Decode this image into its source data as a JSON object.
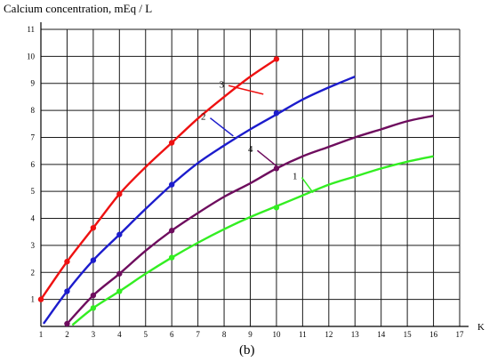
{
  "chart_data": {
    "type": "line",
    "ylabel": "Calcium concentration, mEq / L",
    "xlabel": "K",
    "caption": "(b)",
    "xlim": [
      1,
      17
    ],
    "ylim": [
      0,
      11
    ],
    "x_ticks": [
      1,
      2,
      3,
      4,
      5,
      6,
      7,
      8,
      9,
      10,
      11,
      12,
      13,
      14,
      15,
      16,
      17
    ],
    "y_ticks": [
      1,
      2,
      3,
      4,
      5,
      6,
      7,
      8,
      9,
      10,
      11
    ],
    "grid": true,
    "legend": "none",
    "series": [
      {
        "name": "1",
        "color": "#33ee22",
        "curve": [
          [
            2.2,
            0.05
          ],
          [
            3,
            0.68
          ],
          [
            4,
            1.3
          ],
          [
            5,
            1.95
          ],
          [
            6,
            2.55
          ],
          [
            7,
            3.1
          ],
          [
            8,
            3.6
          ],
          [
            9,
            4.05
          ],
          [
            10,
            4.45
          ],
          [
            11,
            4.85
          ],
          [
            12,
            5.25
          ],
          [
            13,
            5.55
          ],
          [
            14,
            5.85
          ],
          [
            15,
            6.1
          ],
          [
            16,
            6.3
          ]
        ],
        "markers": [
          [
            3,
            0.68
          ],
          [
            4,
            1.3
          ],
          [
            6,
            2.55
          ],
          [
            10,
            4.4
          ]
        ]
      },
      {
        "name": "2",
        "color": "#1c1ccc",
        "curve": [
          [
            1.1,
            0.1
          ],
          [
            2,
            1.3
          ],
          [
            3,
            2.45
          ],
          [
            4,
            3.4
          ],
          [
            5,
            4.35
          ],
          [
            6,
            5.25
          ],
          [
            7,
            6.05
          ],
          [
            8,
            6.7
          ],
          [
            9,
            7.3
          ],
          [
            10,
            7.85
          ],
          [
            11,
            8.4
          ],
          [
            12,
            8.85
          ],
          [
            13,
            9.25
          ]
        ],
        "markers": [
          [
            2,
            1.3
          ],
          [
            3,
            2.45
          ],
          [
            4,
            3.4
          ],
          [
            6,
            5.25
          ],
          [
            10,
            7.9
          ]
        ]
      },
      {
        "name": "3",
        "color": "#ee1111",
        "curve": [
          [
            1,
            1.0
          ],
          [
            2,
            2.4
          ],
          [
            3,
            3.65
          ],
          [
            4,
            4.9
          ],
          [
            5,
            5.9
          ],
          [
            6,
            6.8
          ],
          [
            7,
            7.7
          ],
          [
            8,
            8.5
          ],
          [
            9,
            9.25
          ],
          [
            10,
            9.9
          ]
        ],
        "markers": [
          [
            1,
            1.0
          ],
          [
            2,
            2.4
          ],
          [
            3,
            3.65
          ],
          [
            4,
            4.9
          ],
          [
            6,
            6.8
          ],
          [
            10,
            9.9
          ]
        ]
      },
      {
        "name": "4",
        "color": "#6e0d5e",
        "curve": [
          [
            2,
            0.1
          ],
          [
            3,
            1.15
          ],
          [
            4,
            1.95
          ],
          [
            5,
            2.8
          ],
          [
            6,
            3.55
          ],
          [
            7,
            4.2
          ],
          [
            8,
            4.8
          ],
          [
            9,
            5.3
          ],
          [
            10,
            5.85
          ],
          [
            11,
            6.3
          ],
          [
            12,
            6.65
          ],
          [
            13,
            7.0
          ],
          [
            14,
            7.3
          ],
          [
            15,
            7.6
          ],
          [
            16,
            7.8
          ]
        ],
        "markers": [
          [
            2,
            0.1
          ],
          [
            3,
            1.15
          ],
          [
            4,
            1.95
          ],
          [
            6,
            3.55
          ],
          [
            10,
            5.85
          ]
        ]
      }
    ],
    "annotations": [
      {
        "text": "3",
        "series": "3",
        "at": [
          9.5,
          8.6
        ],
        "label_at": [
          8.0,
          8.85
        ]
      },
      {
        "text": "2",
        "series": "2",
        "at": [
          8.35,
          7.05
        ],
        "label_at": [
          7.3,
          7.65
        ]
      },
      {
        "text": "4",
        "series": "4",
        "at": [
          10.05,
          5.9
        ],
        "label_at": [
          9.1,
          6.45
        ]
      },
      {
        "text": "1",
        "series": "1",
        "at": [
          11.4,
          4.95
        ],
        "label_at": [
          10.8,
          5.45
        ]
      }
    ]
  }
}
